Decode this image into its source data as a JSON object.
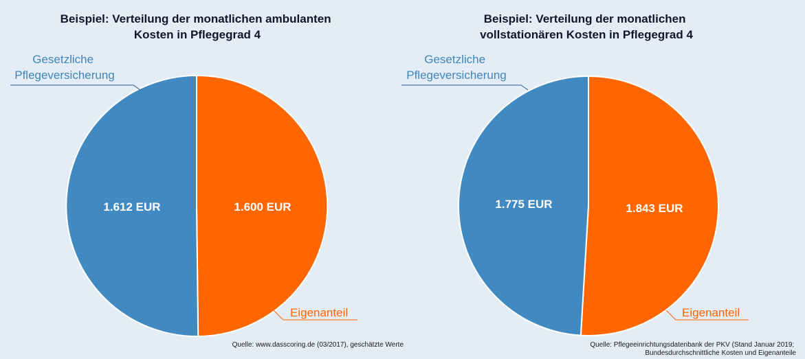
{
  "colors": {
    "background": "#e4ecf6",
    "public": "#4189c1",
    "own": "#ff6600",
    "public_label": "#3f86b9",
    "own_label": "#ff6600"
  },
  "chart_data": [
    {
      "type": "pie",
      "title_lines": [
        "Beispiel: Verteilung der monatlichen ambulanten",
        "Kosten in Pflegegrad 4"
      ],
      "slices": [
        {
          "name_lines": [
            "Gesetzliche",
            "Pflegeversicherung"
          ],
          "value": 1612,
          "value_label": "1.612 EUR",
          "color": "#4189c1"
        },
        {
          "name_lines": [
            "Eigenanteil"
          ],
          "value": 1600,
          "value_label": "1.600 EUR",
          "color": "#ff6600"
        }
      ],
      "source_lines": [
        "Quelle: www.dasscoring.de (03/2017), geschätzte Werte"
      ]
    },
    {
      "type": "pie",
      "title_lines": [
        "Beispiel: Verteilung der monatlichen",
        "vollstationären Kosten in Pflegegrad 4"
      ],
      "slices": [
        {
          "name_lines": [
            "Gesetzliche",
            "Pflegeversicherung"
          ],
          "value": 1775,
          "value_label": "1.775 EUR",
          "color": "#4189c1"
        },
        {
          "name_lines": [
            "Eigenanteil"
          ],
          "value": 1843,
          "value_label": "1.843 EUR",
          "color": "#ff6600"
        }
      ],
      "source_lines": [
        "Quelle: Pflegeeinrichtungsdatenbank der PKV (Stand Januar 2019;",
        "Bundesdurchschnittliche Kosten und Eigenanteile"
      ]
    }
  ]
}
